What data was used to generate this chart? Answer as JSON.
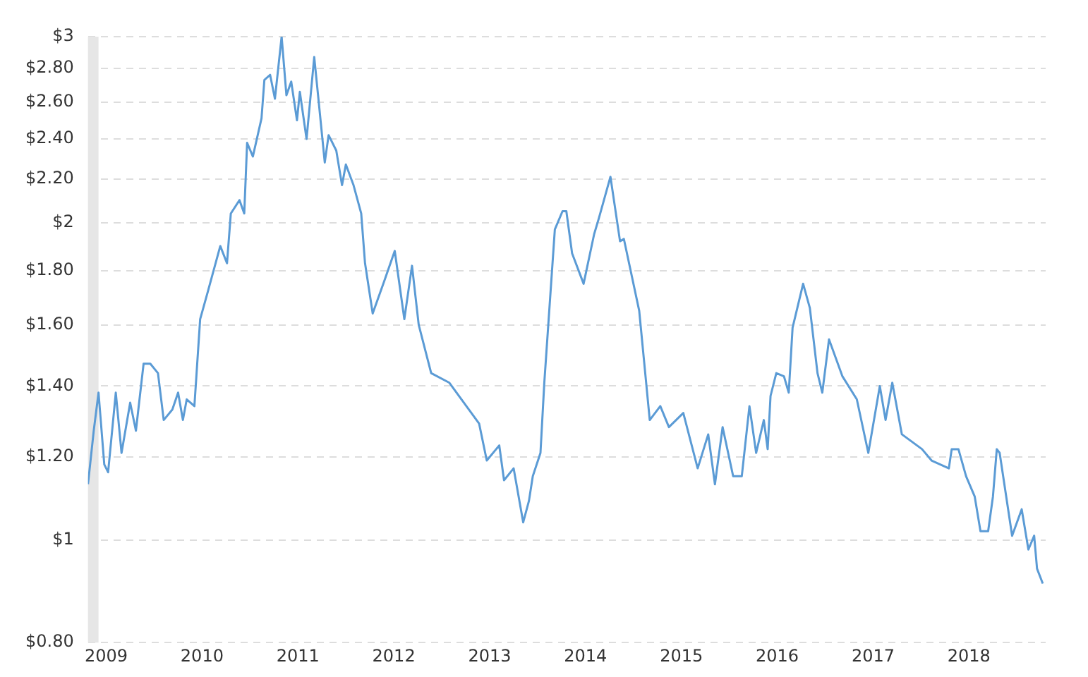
{
  "chart_data": {
    "type": "line",
    "log": "y",
    "grid": "y",
    "legend": false,
    "marker": "none",
    "line_style": "solid",
    "xlim": [
      2008.81,
      2018.8
    ],
    "xticks": [
      2009,
      2010,
      2011,
      2012,
      2013,
      2014,
      2015,
      2016,
      2017,
      2018
    ],
    "ylim": [
      0.8,
      3
    ],
    "yticks": [
      {
        "value": 0.8,
        "label": "$0.80"
      },
      {
        "value": 1,
        "label": "$1"
      },
      {
        "value": 1.2,
        "label": "$1.20"
      },
      {
        "value": 1.4,
        "label": "$1.40"
      },
      {
        "value": 1.6,
        "label": "$1.60"
      },
      {
        "value": 1.8,
        "label": "$1.80"
      },
      {
        "value": 2,
        "label": "$2"
      },
      {
        "value": 2.2,
        "label": "$2.20"
      },
      {
        "value": 2.4,
        "label": "$2.40"
      },
      {
        "value": 2.6,
        "label": "$2.60"
      },
      {
        "value": 2.8,
        "label": "$2.80"
      },
      {
        "value": 3,
        "label": "$3"
      }
    ],
    "bands": [
      {
        "axis": "x",
        "from": 2008.81,
        "to": 2008.92,
        "color": "#e6e6e6"
      }
    ],
    "series": [
      {
        "color": "#5b9bd5",
        "x": [
          2008.81,
          2008.87,
          2008.92,
          2008.98,
          2009.02,
          2009.1,
          2009.16,
          2009.25,
          2009.31,
          2009.39,
          2009.46,
          2009.54,
          2009.6,
          2009.69,
          2009.75,
          2009.8,
          2009.84,
          2009.92,
          2009.98,
          2010.06,
          2010.19,
          2010.26,
          2010.3,
          2010.39,
          2010.44,
          2010.47,
          2010.53,
          2010.62,
          2010.65,
          2010.71,
          2010.76,
          2010.83,
          2010.88,
          2010.93,
          2010.99,
          2011.02,
          2011.09,
          2011.17,
          2011.21,
          2011.28,
          2011.32,
          2011.4,
          2011.46,
          2011.5,
          2011.58,
          2011.66,
          2011.7,
          2011.78,
          2011.9,
          2012.01,
          2012.11,
          2012.19,
          2012.26,
          2012.39,
          2012.58,
          2012.89,
          2012.97,
          2013.1,
          2013.15,
          2013.25,
          2013.35,
          2013.41,
          2013.45,
          2013.53,
          2013.57,
          2013.68,
          2013.76,
          2013.8,
          2013.86,
          2013.98,
          2014.09,
          2014.14,
          2014.26,
          2014.36,
          2014.4,
          2014.56,
          2014.67,
          2014.78,
          2014.87,
          2015.02,
          2015.17,
          2015.28,
          2015.35,
          2015.43,
          2015.54,
          2015.63,
          2015.71,
          2015.78,
          2015.86,
          2015.9,
          2015.93,
          2015.99,
          2016.07,
          2016.12,
          2016.16,
          2016.27,
          2016.34,
          2016.42,
          2016.47,
          2016.54,
          2016.68,
          2016.83,
          2016.95,
          2017.07,
          2017.13,
          2017.2,
          2017.3,
          2017.51,
          2017.61,
          2017.79,
          2017.82,
          2017.89,
          2017.97,
          2018.06,
          2018.12,
          2018.2,
          2018.25,
          2018.29,
          2018.32,
          2018.45,
          2018.55,
          2018.62,
          2018.68,
          2018.71,
          2018.77
        ],
        "values": [
          1.13,
          1.27,
          1.38,
          1.18,
          1.16,
          1.38,
          1.21,
          1.35,
          1.27,
          1.47,
          1.47,
          1.44,
          1.3,
          1.33,
          1.38,
          1.3,
          1.36,
          1.34,
          1.62,
          1.72,
          1.9,
          1.83,
          2.04,
          2.1,
          2.04,
          2.38,
          2.31,
          2.51,
          2.73,
          2.76,
          2.62,
          3.0,
          2.64,
          2.72,
          2.5,
          2.66,
          2.4,
          2.87,
          2.64,
          2.28,
          2.42,
          2.34,
          2.17,
          2.27,
          2.17,
          2.04,
          1.83,
          1.64,
          1.76,
          1.88,
          1.62,
          1.82,
          1.6,
          1.44,
          1.41,
          1.29,
          1.19,
          1.23,
          1.14,
          1.17,
          1.04,
          1.09,
          1.15,
          1.21,
          1.41,
          1.97,
          2.05,
          2.05,
          1.87,
          1.75,
          1.95,
          2.02,
          2.21,
          1.92,
          1.93,
          1.65,
          1.3,
          1.34,
          1.28,
          1.32,
          1.17,
          1.26,
          1.13,
          1.28,
          1.15,
          1.15,
          1.34,
          1.21,
          1.3,
          1.22,
          1.37,
          1.44,
          1.43,
          1.38,
          1.59,
          1.75,
          1.66,
          1.44,
          1.38,
          1.55,
          1.43,
          1.36,
          1.21,
          1.4,
          1.3,
          1.41,
          1.26,
          1.22,
          1.19,
          1.17,
          1.22,
          1.22,
          1.15,
          1.1,
          1.02,
          1.02,
          1.1,
          1.22,
          1.21,
          1.01,
          1.07,
          0.98,
          1.01,
          0.94,
          0.91
        ]
      }
    ]
  }
}
